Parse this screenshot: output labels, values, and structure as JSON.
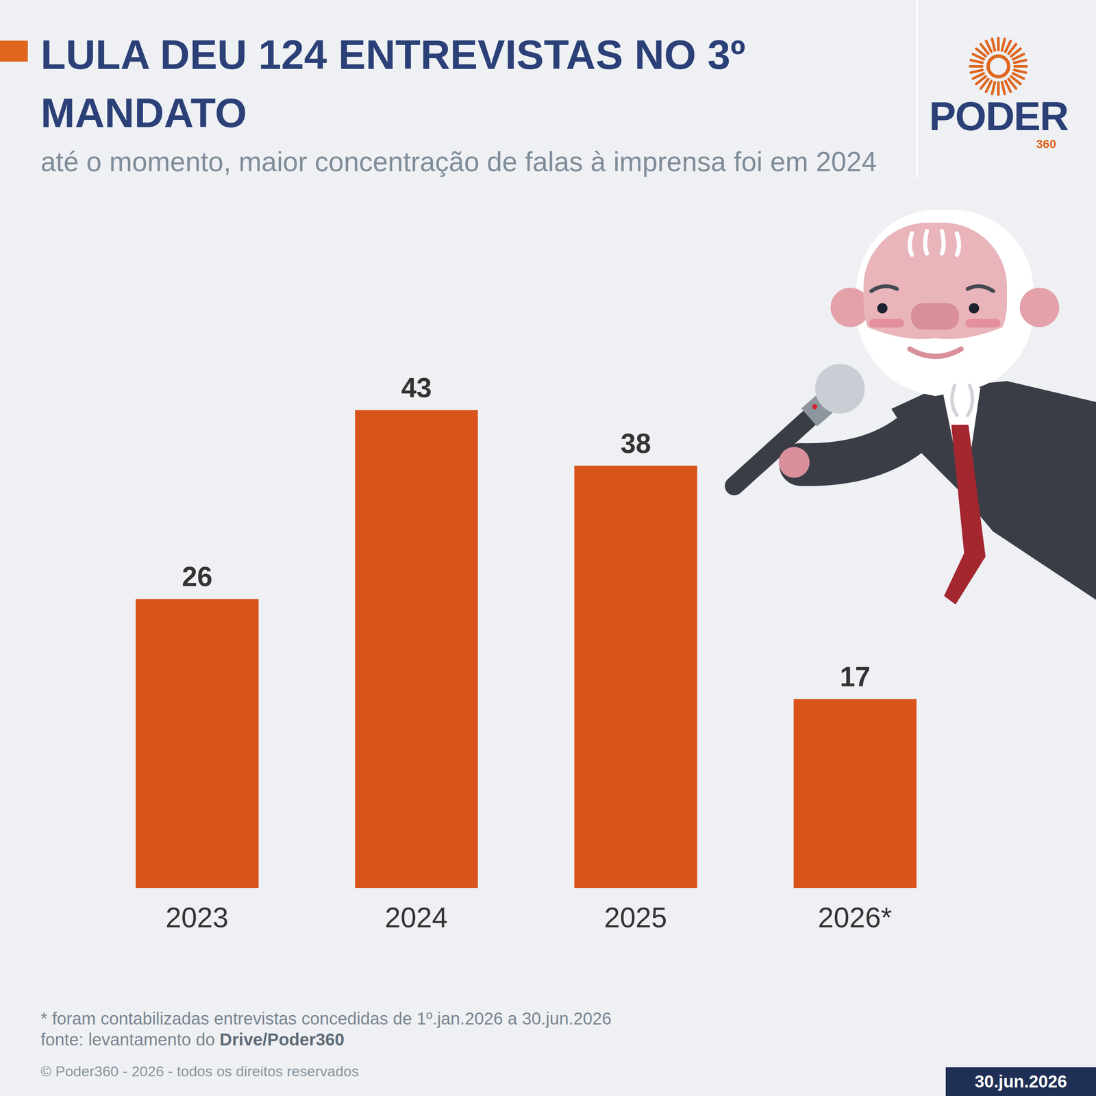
{
  "chart_data": {
    "type": "bar",
    "title": "LULA DEU 124 ENTREVISTAS NO 3º MANDATO",
    "subtitle": "até o momento, maior concentração de falas à imprensa foi em 2024",
    "categories": [
      "2023",
      "2024",
      "2025",
      "2026*"
    ],
    "values": [
      26,
      43,
      38,
      17
    ],
    "color": "#d9541a",
    "ylim": [
      0,
      43
    ],
    "data_labels": true,
    "tick_labels": "x",
    "grid": false
  },
  "footnote": "* foram contabilizadas entrevistas concedidas de 1º.jan.2026 a 30.jun.2026",
  "source_label": "fonte: levantamento do",
  "source_name": "Drive/Poder360",
  "copyright": "© Poder360 - 2026 - todos os direitos reservados",
  "date": "30.jun.2026",
  "logo": {
    "name": "PODER",
    "suffix": "360"
  }
}
